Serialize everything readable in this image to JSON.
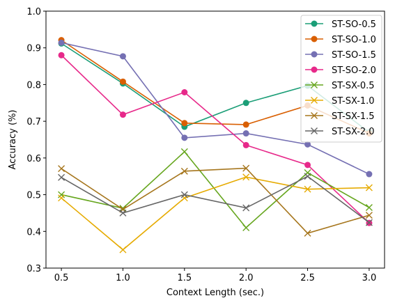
{
  "chart_data": {
    "type": "line",
    "xlabel": "Context Length (sec.)",
    "ylabel": "Accuracy (%)",
    "xlim": [
      0.375,
      3.125
    ],
    "ylim": [
      0.3,
      1.0
    ],
    "xticks": [
      "0.5",
      "1.0",
      "1.5",
      "2.0",
      "2.5",
      "3.0"
    ],
    "yticks": [
      "0.3",
      "0.4",
      "0.5",
      "0.6",
      "0.7",
      "0.8",
      "0.9",
      "1.0"
    ],
    "grid": false,
    "legend_position": "top-right",
    "x": [
      0.5,
      1.0,
      1.5,
      2.0,
      2.5,
      3.0
    ],
    "series": [
      {
        "name": "ST-SO-0.5",
        "color": "#1b9e77",
        "marker": "circle",
        "values": [
          0.912,
          0.803,
          0.685,
          0.75,
          0.797,
          0.67
        ]
      },
      {
        "name": "ST-SO-1.0",
        "color": "#d95f02",
        "marker": "circle",
        "values": [
          0.921,
          0.808,
          0.695,
          0.691,
          0.743,
          0.667
        ]
      },
      {
        "name": "ST-SO-1.5",
        "color": "#7570b3",
        "marker": "circle",
        "values": [
          0.914,
          0.877,
          0.655,
          0.667,
          0.637,
          0.556
        ]
      },
      {
        "name": "ST-SO-2.0",
        "color": "#e7298a",
        "marker": "circle",
        "values": [
          0.88,
          0.718,
          0.779,
          0.635,
          0.581,
          0.423
        ]
      },
      {
        "name": "ST-SX-0.5",
        "color": "#66a61e",
        "marker": "x",
        "values": [
          0.5,
          0.463,
          0.617,
          0.41,
          0.56,
          0.465
        ]
      },
      {
        "name": "ST-SX-1.0",
        "color": "#e6ab02",
        "marker": "x",
        "values": [
          0.491,
          0.35,
          0.491,
          0.548,
          0.515,
          0.519
        ]
      },
      {
        "name": "ST-SX-1.5",
        "color": "#a6761d",
        "marker": "x",
        "values": [
          0.571,
          0.46,
          0.564,
          0.572,
          0.395,
          0.444
        ]
      },
      {
        "name": "ST-SX-2.0",
        "color": "#666666",
        "marker": "x",
        "values": [
          0.547,
          0.45,
          0.5,
          0.464,
          0.55,
          0.424
        ]
      }
    ]
  }
}
